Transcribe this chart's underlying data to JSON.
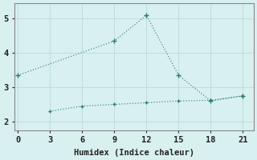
{
  "xlabel": "Humidex (Indice chaleur)",
  "bg_color": "#d8f0f0",
  "grid_color": "#c0dede",
  "line_color": "#2a7a6e",
  "x_ticks": [
    0,
    3,
    6,
    9,
    12,
    15,
    18,
    21
  ],
  "xlim": [
    -0.3,
    22.0
  ],
  "ylim": [
    1.75,
    5.45
  ],
  "y_ticks": [
    2,
    3,
    4,
    5
  ],
  "line1_x": [
    0,
    9,
    12,
    15,
    18,
    21
  ],
  "line1_y": [
    3.35,
    4.35,
    5.1,
    3.35,
    2.6,
    2.75
  ],
  "line2_x": [
    3,
    6,
    9,
    12,
    15,
    18,
    21
  ],
  "line2_y": [
    2.3,
    2.45,
    2.5,
    2.55,
    2.6,
    2.62,
    2.75
  ]
}
